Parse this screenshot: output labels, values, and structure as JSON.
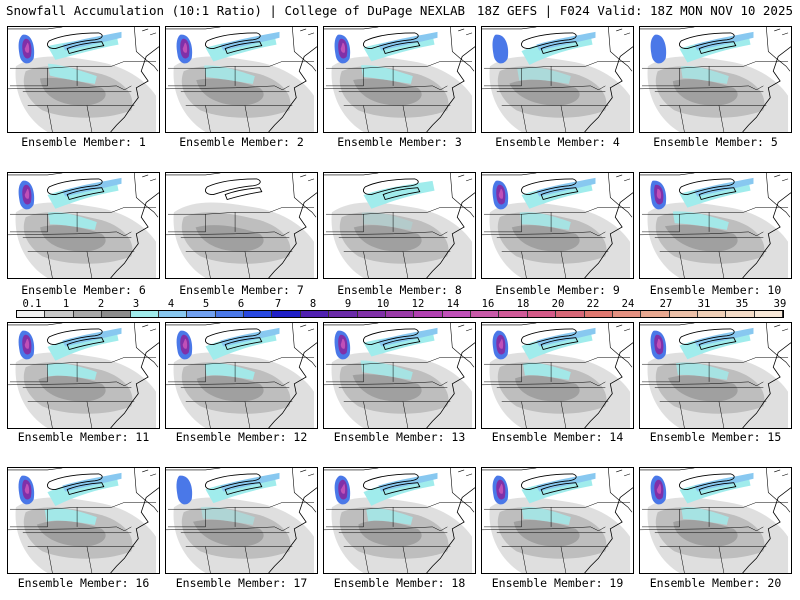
{
  "header": {
    "left": "Snowfall Accumulation (10:1 Ratio) | College of DuPage NEXLAB",
    "right": "18Z GEFS | F024 Valid: 18Z MON NOV 10 2025"
  },
  "panels": [
    {
      "caption": "Ensemble Member: 1",
      "intensity": 0.9
    },
    {
      "caption": "Ensemble Member: 2",
      "intensity": 0.8
    },
    {
      "caption": "Ensemble Member: 3",
      "intensity": 0.9
    },
    {
      "caption": "Ensemble Member: 4",
      "intensity": 0.6
    },
    {
      "caption": "Ensemble Member: 5",
      "intensity": 0.7
    },
    {
      "caption": "Ensemble Member: 6",
      "intensity": 0.9
    },
    {
      "caption": "Ensemble Member: 7",
      "intensity": 0.2
    },
    {
      "caption": "Ensemble Member: 8",
      "intensity": 0.3
    },
    {
      "caption": "Ensemble Member: 9",
      "intensity": 0.8
    },
    {
      "caption": "Ensemble Member: 10",
      "intensity": 0.9
    },
    {
      "caption": "Ensemble Member: 11",
      "intensity": 0.9
    },
    {
      "caption": "Ensemble Member: 12",
      "intensity": 0.9
    },
    {
      "caption": "Ensemble Member: 13",
      "intensity": 0.8
    },
    {
      "caption": "Ensemble Member: 14",
      "intensity": 0.9
    },
    {
      "caption": "Ensemble Member: 15",
      "intensity": 0.8
    },
    {
      "caption": "Ensemble Member: 16",
      "intensity": 0.9
    },
    {
      "caption": "Ensemble Member: 17",
      "intensity": 0.5
    },
    {
      "caption": "Ensemble Member: 18",
      "intensity": 0.8
    },
    {
      "caption": "Ensemble Member: 19",
      "intensity": 0.8
    },
    {
      "caption": "Ensemble Member: 20",
      "intensity": 0.8
    }
  ],
  "colorbar": {
    "labels": [
      "0.1",
      "1",
      "2",
      "3",
      "4",
      "5",
      "6",
      "7",
      "8",
      "9",
      "10",
      "12",
      "14",
      "16",
      "18",
      "20",
      "22",
      "24",
      "27",
      "31",
      "35",
      "39"
    ],
    "colors": [
      "#f0f0f0",
      "#c8c8c8",
      "#a8a8a8",
      "#8c8c8c",
      "#a0ecec",
      "#88c8f0",
      "#70a0f0",
      "#4a78e8",
      "#2848e0",
      "#2020c8",
      "#5020b0",
      "#6a2aa8",
      "#8030a8",
      "#9a3aa8",
      "#b040b0",
      "#c050b8",
      "#c85aa8",
      "#d05a98",
      "#d45a88",
      "#d86878",
      "#e07870",
      "#e49080",
      "#e8a890",
      "#ecc0a8",
      "#f0d0b8",
      "#f4dcc8",
      "#f8e8d8"
    ]
  }
}
